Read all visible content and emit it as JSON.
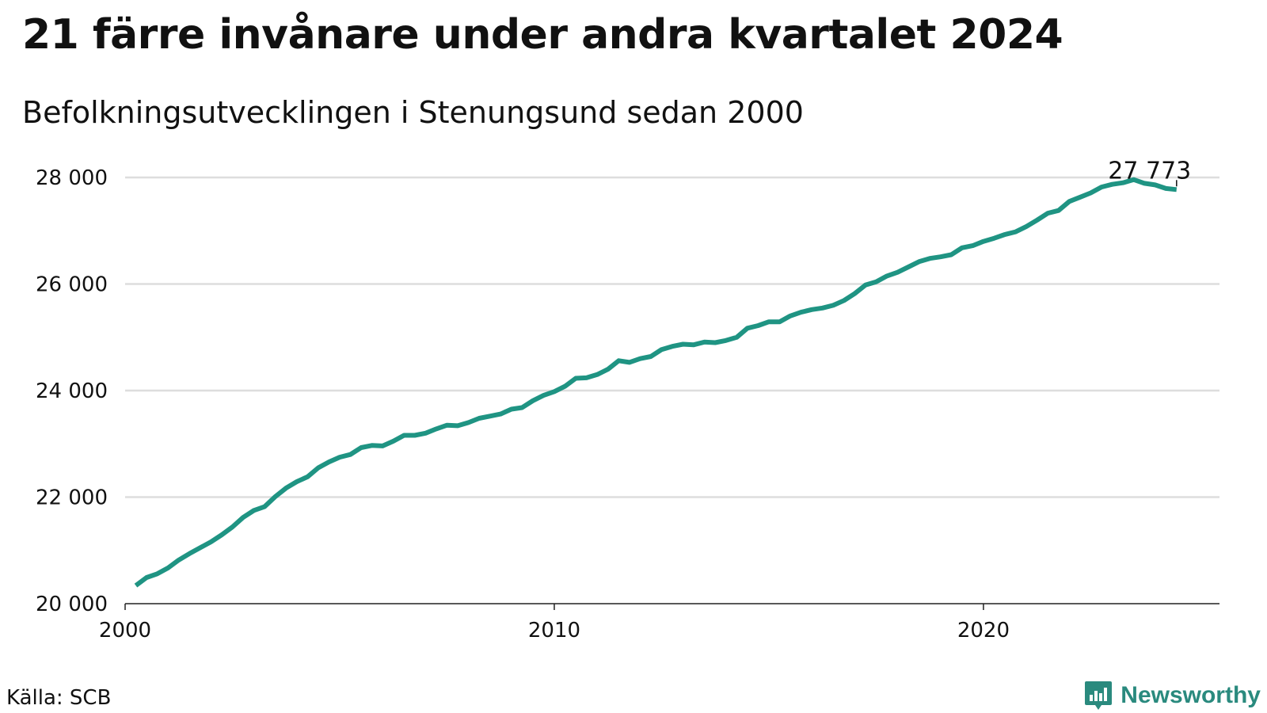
{
  "title": "21 färre invånare under andra kvartalet 2024",
  "subtitle": "Befolkningsutvecklingen i Stenungsund sedan 2000",
  "source": "Källa: SCB",
  "brand": {
    "name": "Newsworthy",
    "color": "#2a8a7e",
    "icon": "newsworthy-logo-icon"
  },
  "chart_data": {
    "type": "line",
    "line_color": "#1f9483",
    "grid": true,
    "xlim": [
      2000,
      2025.5
    ],
    "ylim": [
      20000,
      28000
    ],
    "x_ticks": [
      2000,
      2010,
      2020
    ],
    "x_tick_labels": [
      "2000",
      "2010",
      "2020"
    ],
    "y_ticks": [
      20000,
      22000,
      24000,
      26000,
      28000
    ],
    "y_tick_labels": [
      "20 000",
      "22 000",
      "24 000",
      "26 000",
      "28 000"
    ],
    "end_label": "27 773",
    "series": [
      {
        "values": [
          [
            2000.25,
            20340
          ],
          [
            2000.5,
            20490
          ],
          [
            2000.75,
            20560
          ],
          [
            2001.0,
            20670
          ],
          [
            2001.25,
            20820
          ],
          [
            2001.5,
            20940
          ],
          [
            2001.75,
            21050
          ],
          [
            2002.0,
            21160
          ],
          [
            2002.25,
            21290
          ],
          [
            2002.5,
            21440
          ],
          [
            2002.75,
            21620
          ],
          [
            2003.0,
            21750
          ],
          [
            2003.25,
            21820
          ],
          [
            2003.5,
            22010
          ],
          [
            2003.75,
            22170
          ],
          [
            2004.0,
            22290
          ],
          [
            2004.25,
            22380
          ],
          [
            2004.5,
            22550
          ],
          [
            2004.75,
            22660
          ],
          [
            2005.0,
            22750
          ],
          [
            2005.25,
            22800
          ],
          [
            2005.5,
            22930
          ],
          [
            2005.75,
            22970
          ],
          [
            2006.0,
            22960
          ],
          [
            2006.25,
            23050
          ],
          [
            2006.5,
            23160
          ],
          [
            2006.75,
            23160
          ],
          [
            2007.0,
            23200
          ],
          [
            2007.25,
            23280
          ],
          [
            2007.5,
            23350
          ],
          [
            2007.75,
            23340
          ],
          [
            2008.0,
            23400
          ],
          [
            2008.25,
            23480
          ],
          [
            2008.5,
            23520
          ],
          [
            2008.75,
            23560
          ],
          [
            2009.0,
            23650
          ],
          [
            2009.25,
            23680
          ],
          [
            2009.5,
            23810
          ],
          [
            2009.75,
            23910
          ],
          [
            2010.0,
            23980
          ],
          [
            2010.25,
            24080
          ],
          [
            2010.5,
            24230
          ],
          [
            2010.75,
            24240
          ],
          [
            2011.0,
            24300
          ],
          [
            2011.25,
            24400
          ],
          [
            2011.5,
            24560
          ],
          [
            2011.75,
            24530
          ],
          [
            2012.0,
            24600
          ],
          [
            2012.25,
            24640
          ],
          [
            2012.5,
            24770
          ],
          [
            2012.75,
            24830
          ],
          [
            2013.0,
            24870
          ],
          [
            2013.25,
            24860
          ],
          [
            2013.5,
            24910
          ],
          [
            2013.75,
            24900
          ],
          [
            2014.0,
            24940
          ],
          [
            2014.25,
            25000
          ],
          [
            2014.5,
            25170
          ],
          [
            2014.75,
            25220
          ],
          [
            2015.0,
            25290
          ],
          [
            2015.25,
            25290
          ],
          [
            2015.5,
            25400
          ],
          [
            2015.75,
            25470
          ],
          [
            2016.0,
            25520
          ],
          [
            2016.25,
            25550
          ],
          [
            2016.5,
            25600
          ],
          [
            2016.75,
            25690
          ],
          [
            2017.0,
            25820
          ],
          [
            2017.25,
            25980
          ],
          [
            2017.5,
            26040
          ],
          [
            2017.75,
            26150
          ],
          [
            2018.0,
            26220
          ],
          [
            2018.25,
            26320
          ],
          [
            2018.5,
            26420
          ],
          [
            2018.75,
            26480
          ],
          [
            2019.0,
            26510
          ],
          [
            2019.25,
            26550
          ],
          [
            2019.5,
            26680
          ],
          [
            2019.75,
            26720
          ],
          [
            2020.0,
            26800
          ],
          [
            2020.25,
            26860
          ],
          [
            2020.5,
            26930
          ],
          [
            2020.75,
            26980
          ],
          [
            2021.0,
            27080
          ],
          [
            2021.25,
            27200
          ],
          [
            2021.5,
            27330
          ],
          [
            2021.75,
            27380
          ],
          [
            2022.0,
            27550
          ],
          [
            2022.25,
            27630
          ],
          [
            2022.5,
            27710
          ],
          [
            2022.75,
            27820
          ],
          [
            2023.0,
            27870
          ],
          [
            2023.25,
            27900
          ],
          [
            2023.5,
            27960
          ],
          [
            2023.75,
            27890
          ],
          [
            2024.0,
            27860
          ],
          [
            2024.25,
            27794
          ],
          [
            2024.5,
            27773
          ]
        ]
      }
    ]
  }
}
